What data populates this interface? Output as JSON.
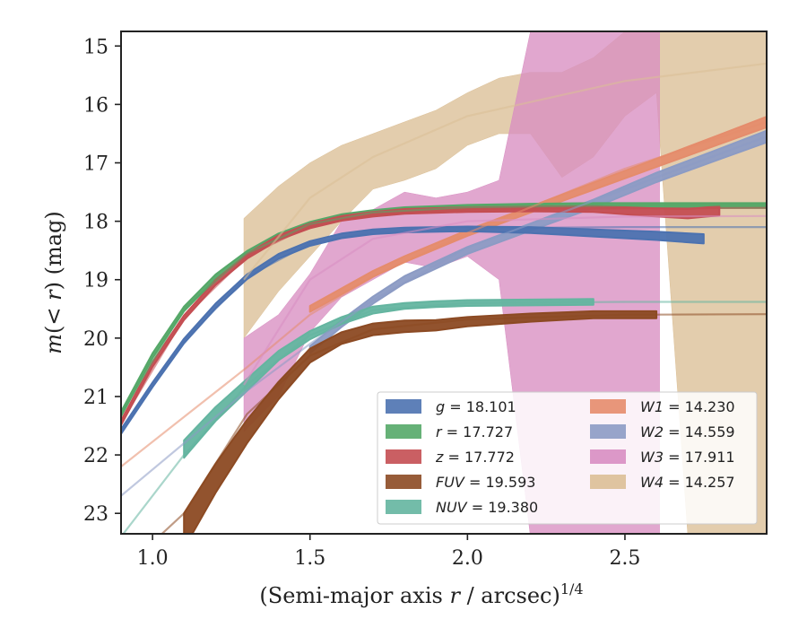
{
  "chart_data": {
    "type": "line",
    "title": "",
    "xlabel": "(Semi-major axis r / arcsec)^1/4",
    "ylabel": "m(< r) (mag)",
    "xlim": [
      0.9,
      2.95
    ],
    "ylim": [
      23.35,
      14.75
    ],
    "y_inverted": true,
    "xticks": [
      1.0,
      1.5,
      2.0,
      2.5
    ],
    "xtick_labels": [
      "1.0",
      "1.5",
      "2.0",
      "2.5"
    ],
    "yticks": [
      15,
      16,
      17,
      18,
      19,
      20,
      21,
      22,
      23
    ],
    "ytick_labels": [
      "15",
      "16",
      "17",
      "18",
      "19",
      "20",
      "21",
      "22",
      "23"
    ],
    "grid": false,
    "legend_position": "lower-right",
    "series": [
      {
        "name": "g = 18.101",
        "legend_var": "g",
        "legend_value": "= 18.101",
        "color": "#4c72b0",
        "x": [
          0.9,
          1.0,
          1.1,
          1.2,
          1.3,
          1.4,
          1.5,
          1.6,
          1.7,
          1.8,
          2.0,
          2.2,
          2.4,
          2.6,
          2.75
        ],
        "y": [
          21.6,
          20.8,
          20.05,
          19.45,
          18.95,
          18.6,
          18.38,
          18.25,
          18.18,
          18.15,
          18.13,
          18.15,
          18.2,
          18.25,
          18.3
        ],
        "band_halfwidth": [
          0.04,
          0.04,
          0.04,
          0.04,
          0.04,
          0.04,
          0.04,
          0.04,
          0.04,
          0.04,
          0.04,
          0.05,
          0.06,
          0.07,
          0.08
        ],
        "model_x": [
          0.9,
          1.1,
          1.3,
          1.5,
          1.7,
          2.0,
          2.5,
          2.95
        ],
        "model_y": [
          21.6,
          20.05,
          18.95,
          18.38,
          18.18,
          18.12,
          18.1,
          18.1
        ]
      },
      {
        "name": "r = 17.727",
        "legend_var": "r",
        "legend_value": "= 17.727",
        "color": "#55a868",
        "x": [
          0.9,
          1.0,
          1.1,
          1.2,
          1.3,
          1.4,
          1.5,
          1.6,
          1.7,
          1.8,
          2.0,
          2.2,
          2.4,
          2.6,
          2.8,
          2.95
        ],
        "y": [
          21.3,
          20.3,
          19.5,
          18.95,
          18.55,
          18.25,
          18.05,
          17.92,
          17.85,
          17.8,
          17.76,
          17.74,
          17.73,
          17.73,
          17.73,
          17.73
        ],
        "band_halfwidth": [
          0.04,
          0.04,
          0.04,
          0.04,
          0.04,
          0.04,
          0.04,
          0.04,
          0.04,
          0.04,
          0.04,
          0.04,
          0.04,
          0.04,
          0.04,
          0.04
        ],
        "model_x": [
          0.9,
          1.1,
          1.3,
          1.5,
          1.7,
          2.0,
          2.5,
          2.95
        ],
        "model_y": [
          21.3,
          19.5,
          18.55,
          18.05,
          17.85,
          17.76,
          17.73,
          17.73
        ]
      },
      {
        "name": "z = 17.772",
        "legend_var": "z",
        "legend_value": "= 17.772",
        "color": "#c44e52",
        "x": [
          0.9,
          1.0,
          1.1,
          1.2,
          1.3,
          1.4,
          1.5,
          1.6,
          1.7,
          1.8,
          2.0,
          2.2,
          2.4,
          2.6,
          2.7,
          2.8
        ],
        "y": [
          21.45,
          20.45,
          19.65,
          19.05,
          18.6,
          18.28,
          18.08,
          17.95,
          17.88,
          17.83,
          17.8,
          17.79,
          17.79,
          17.85,
          17.87,
          17.82
        ],
        "band_halfwidth": [
          0.04,
          0.04,
          0.04,
          0.04,
          0.04,
          0.04,
          0.04,
          0.04,
          0.04,
          0.04,
          0.04,
          0.04,
          0.05,
          0.07,
          0.08,
          0.08
        ],
        "model_x": [
          0.9,
          1.1,
          1.3,
          1.5,
          1.7,
          2.0,
          2.5,
          2.95
        ],
        "model_y": [
          21.45,
          19.65,
          18.6,
          18.08,
          17.88,
          17.8,
          17.78,
          17.77
        ]
      },
      {
        "name": "FUV = 19.593",
        "legend_var": "FUV",
        "legend_value": "= 19.593",
        "color": "#8c4a23",
        "x": [
          1.1,
          1.2,
          1.3,
          1.4,
          1.5,
          1.6,
          1.7,
          1.8,
          1.9,
          2.0,
          2.2,
          2.4,
          2.6
        ],
        "y": [
          23.3,
          22.4,
          21.6,
          20.9,
          20.3,
          20.0,
          19.85,
          19.8,
          19.78,
          19.72,
          19.65,
          19.6,
          19.6
        ],
        "band_halfwidth": [
          0.3,
          0.25,
          0.2,
          0.15,
          0.12,
          0.1,
          0.1,
          0.1,
          0.09,
          0.08,
          0.07,
          0.06,
          0.06
        ],
        "model_x": [
          0.9,
          1.1,
          1.3,
          1.5,
          1.7,
          2.0,
          2.5,
          2.95
        ],
        "model_y": [
          24.0,
          23.0,
          21.3,
          20.3,
          19.85,
          19.68,
          19.6,
          19.59
        ]
      },
      {
        "name": "NUV = 19.380",
        "legend_var": "NUV",
        "legend_value": "= 19.380",
        "color": "#64b5a0",
        "x": [
          1.1,
          1.2,
          1.3,
          1.4,
          1.5,
          1.6,
          1.7,
          1.8,
          1.9,
          2.0,
          2.2,
          2.4
        ],
        "y": [
          21.9,
          21.3,
          20.8,
          20.3,
          19.95,
          19.7,
          19.52,
          19.45,
          19.42,
          19.4,
          19.39,
          19.38
        ],
        "band_halfwidth": [
          0.15,
          0.12,
          0.1,
          0.08,
          0.07,
          0.06,
          0.06,
          0.05,
          0.05,
          0.05,
          0.05,
          0.05
        ],
        "model_x": [
          0.9,
          1.1,
          1.3,
          1.5,
          1.7,
          2.0,
          2.5,
          2.95
        ],
        "model_y": [
          23.4,
          22.0,
          20.8,
          19.95,
          19.52,
          19.4,
          19.38,
          19.38
        ]
      },
      {
        "name": "W1 = 14.230",
        "legend_var": "W1",
        "legend_value": "= 14.230",
        "color": "#e58c6c",
        "x": [
          1.5,
          1.6,
          1.7,
          1.8,
          2.0,
          2.2,
          2.4,
          2.6,
          2.8,
          2.95
        ],
        "y": [
          19.5,
          19.2,
          18.9,
          18.65,
          18.2,
          17.8,
          17.4,
          17.0,
          16.6,
          16.3
        ],
        "band_halfwidth": [
          0.05,
          0.05,
          0.05,
          0.05,
          0.05,
          0.05,
          0.06,
          0.07,
          0.08,
          0.09
        ],
        "model_x": [
          0.9,
          1.1,
          1.3,
          1.5,
          1.7,
          2.0,
          2.5,
          2.95
        ],
        "model_y": [
          22.2,
          21.35,
          20.5,
          19.6,
          18.95,
          18.2,
          17.1,
          16.3
        ]
      },
      {
        "name": "W2 = 14.559",
        "legend_var": "W2",
        "legend_value": "= 14.559",
        "color": "#8c9bc4",
        "x": [
          1.5,
          1.6,
          1.7,
          1.8,
          2.0,
          2.2,
          2.4,
          2.6,
          2.8,
          2.95
        ],
        "y": [
          20.2,
          19.75,
          19.35,
          19.0,
          18.5,
          18.1,
          17.7,
          17.25,
          16.85,
          16.55
        ],
        "band_halfwidth": [
          0.06,
          0.06,
          0.06,
          0.06,
          0.06,
          0.06,
          0.07,
          0.08,
          0.09,
          0.1
        ],
        "model_x": [
          0.9,
          1.1,
          1.3,
          1.5,
          1.7,
          2.0,
          2.5,
          2.95
        ],
        "model_y": [
          22.7,
          21.8,
          20.9,
          20.1,
          19.35,
          18.45,
          17.45,
          16.55
        ]
      },
      {
        "name": "W3 = 17.911",
        "legend_var": "W3",
        "legend_value": "= 17.911",
        "color": "#d88ec2",
        "x": [
          1.29,
          1.4,
          1.5,
          1.6,
          1.7,
          1.8,
          1.9,
          2.0,
          2.1,
          2.2,
          2.3,
          2.4,
          2.5,
          2.61
        ],
        "y": [
          20.8,
          20.3,
          19.4,
          18.6,
          18.3,
          18.1,
          18.2,
          18.05,
          18.3,
          18.4,
          18.2,
          18.5,
          18.8,
          19.1
        ],
        "band_lower": [
          21.6,
          21.0,
          19.9,
          19.3,
          19.0,
          18.7,
          18.8,
          18.6,
          19.0,
          23.4,
          23.4,
          23.4,
          23.4,
          23.4
        ],
        "band_upper": [
          20.0,
          19.6,
          18.9,
          18.0,
          17.8,
          17.5,
          17.6,
          17.5,
          17.3,
          14.75,
          14.75,
          14.75,
          14.75,
          14.75
        ],
        "model_x": [
          1.29,
          1.5,
          1.7,
          2.0,
          2.5,
          2.95
        ],
        "model_y": [
          20.8,
          19.0,
          18.3,
          18.0,
          17.92,
          17.91
        ]
      },
      {
        "name": "W4 = 14.257",
        "legend_var": "W4",
        "legend_value": "= 14.257",
        "color": "#dbbf96",
        "x": [
          1.29,
          1.4,
          1.5,
          1.6,
          1.7,
          1.8,
          1.9,
          2.0,
          2.1,
          2.2,
          2.3,
          2.4,
          2.5,
          2.6,
          2.7,
          2.8,
          2.95
        ],
        "y": [
          19.0,
          18.2,
          17.6,
          17.2,
          16.9,
          16.7,
          16.5,
          16.2,
          16.0,
          16.0,
          16.3,
          15.9,
          15.6,
          15.5,
          15.5,
          15.4,
          15.3
        ],
        "band_lower": [
          20.0,
          19.2,
          18.6,
          18.0,
          17.45,
          17.3,
          17.1,
          16.7,
          16.5,
          16.5,
          17.25,
          16.9,
          16.2,
          15.8,
          23.4,
          23.4,
          23.4
        ],
        "band_upper": [
          17.95,
          17.4,
          17.0,
          16.7,
          16.5,
          16.3,
          16.1,
          15.8,
          15.55,
          15.45,
          15.45,
          15.2,
          14.75,
          14.75,
          14.75,
          14.75,
          14.75
        ],
        "model_x": [
          1.29,
          1.5,
          1.7,
          2.0,
          2.5,
          2.95
        ],
        "model_y": [
          19.0,
          17.6,
          16.9,
          16.2,
          15.6,
          15.3
        ]
      }
    ]
  }
}
